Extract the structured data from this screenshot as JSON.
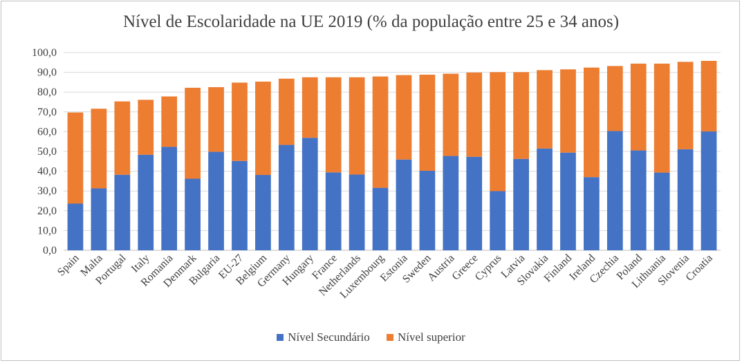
{
  "colors": {
    "secondary": "#4472C4",
    "superior": "#ED7D31",
    "grid": "#d9d9d9",
    "axis": "#bfbfbf",
    "text": "#404040"
  },
  "chart_data": {
    "type": "bar",
    "stacked": true,
    "title": "Nível de Escolaridade na UE 2019 (% da população entre 25 e 34 anos)",
    "xlabel": "",
    "ylabel": "",
    "ylim": [
      0,
      100
    ],
    "yticks": [
      "0,0",
      "10,0",
      "20,0",
      "30,0",
      "40,0",
      "50,0",
      "60,0",
      "70,0",
      "80,0",
      "90,0",
      "100,0"
    ],
    "grid": true,
    "legend_position": "bottom",
    "categories": [
      "Spain",
      "Malta",
      "Portugal",
      "Italy",
      "Romania",
      "Denmark",
      "Bulgaria",
      "EU-27",
      "Belgium",
      "Germany",
      "Hungary",
      "France",
      "Netherlands",
      "Luxembourg",
      "Estonia",
      "Sweden",
      "Austria",
      "Greece",
      "Cyprus",
      "Latvia",
      "Slovakia",
      "Finland",
      "Ireland",
      "Czechia",
      "Poland",
      "Lithuania",
      "Slovenia",
      "Croatia"
    ],
    "series": [
      {
        "name": "Nível Secundário",
        "values": [
          23.6,
          31.3,
          38.2,
          48.3,
          52.3,
          36.2,
          49.8,
          45.2,
          38.1,
          53.3,
          56.9,
          39.4,
          38.3,
          31.6,
          45.9,
          40.2,
          47.7,
          47.3,
          29.9,
          46.2,
          51.5,
          49.4,
          37.0,
          60.3,
          50.5,
          39.3,
          51.1,
          60.1
        ]
      },
      {
        "name": "Nível superior",
        "values": [
          46.1,
          40.3,
          37.1,
          27.8,
          25.5,
          46.0,
          32.7,
          39.6,
          47.2,
          33.5,
          30.6,
          48.1,
          49.2,
          56.3,
          42.7,
          48.6,
          41.6,
          42.6,
          60.2,
          43.9,
          39.6,
          42.1,
          55.4,
          32.9,
          43.9,
          55.1,
          44.2,
          35.7
        ]
      }
    ]
  }
}
